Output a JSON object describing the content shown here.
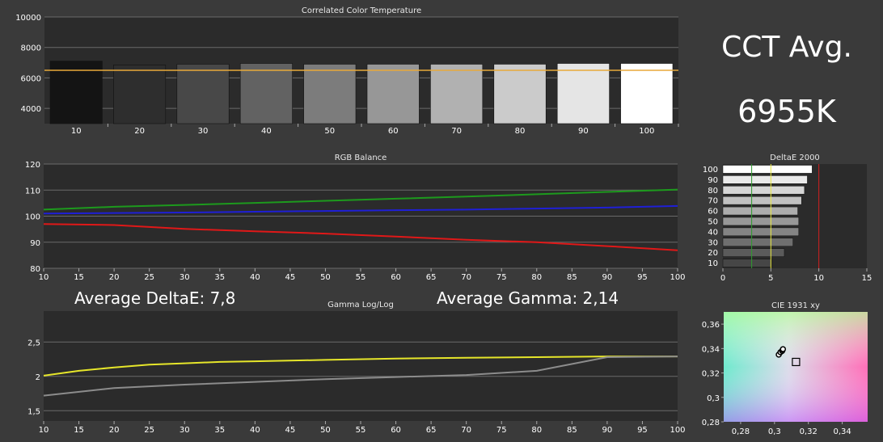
{
  "summary": {
    "cct_avg_label": "CCT Avg.",
    "cct_avg_value": "6955K",
    "avg_deltae_label": "Average DeltaE: 7,8",
    "avg_gamma_label": "Average Gamma: 2,14"
  },
  "chart_data": [
    {
      "type": "bar",
      "title": "Correlated Color Temperature",
      "categories": [
        "10",
        "20",
        "30",
        "40",
        "50",
        "60",
        "70",
        "80",
        "90",
        "100"
      ],
      "values": [
        7100,
        6850,
        6900,
        6950,
        6900,
        6900,
        6900,
        6900,
        6950,
        6950
      ],
      "reference_line": 6500,
      "ylim": [
        3000,
        10000
      ],
      "yticks": [
        4000,
        6000,
        8000,
        10000
      ],
      "ytick_labels": [
        "4000",
        "6000",
        "8000",
        "10000"
      ],
      "colors": {
        "reference": "#e8a93a",
        "background": "#2b2b2b",
        "grid": "#6a6a6a"
      }
    },
    {
      "type": "line",
      "title": "RGB Balance",
      "x": [
        10,
        15,
        20,
        25,
        30,
        35,
        40,
        45,
        50,
        55,
        60,
        65,
        70,
        75,
        80,
        85,
        90,
        95,
        100
      ],
      "xtick_labels": [
        "10",
        "15",
        "20",
        "25",
        "30",
        "35",
        "40",
        "45",
        "50",
        "55",
        "60",
        "65",
        "70",
        "75",
        "80",
        "85",
        "90",
        "95",
        "100"
      ],
      "ylim": [
        80,
        120
      ],
      "yticks": [
        80,
        90,
        100,
        110,
        120
      ],
      "ytick_labels": [
        "80",
        "90",
        "100",
        "110",
        "120"
      ],
      "series": [
        {
          "color": "#1d9a1d",
          "x": [
            10,
            20,
            30,
            40,
            50,
            60,
            70,
            80,
            90,
            100
          ],
          "values": [
            102.5,
            103.6,
            104.3,
            105.1,
            105.9,
            106.7,
            107.5,
            108.4,
            109.3,
            110.2
          ]
        },
        {
          "color": "#1f1fd6",
          "x": [
            10,
            20,
            30,
            40,
            50,
            60,
            70,
            80,
            90,
            100
          ],
          "values": [
            101.0,
            101.2,
            101.4,
            101.7,
            102.0,
            102.3,
            102.5,
            102.9,
            103.3,
            103.9
          ]
        },
        {
          "color": "#e01818",
          "x": [
            10,
            20,
            30,
            40,
            50,
            60,
            70,
            80,
            90,
            100
          ],
          "values": [
            97.0,
            96.6,
            95.1,
            94.2,
            93.3,
            92.2,
            90.9,
            90.0,
            88.5,
            86.9
          ]
        }
      ]
    },
    {
      "type": "bar",
      "orientation": "horizontal",
      "title": "DeltaE 2000",
      "categories": [
        "10",
        "20",
        "30",
        "40",
        "50",
        "60",
        "70",
        "80",
        "90",
        "100"
      ],
      "values": [
        5.1,
        6.4,
        7.3,
        7.9,
        7.9,
        7.8,
        8.2,
        8.5,
        8.8,
        9.3
      ],
      "xlim": [
        0,
        15
      ],
      "xticks": [
        0,
        5,
        10,
        15
      ],
      "xtick_labels": [
        "0",
        "5",
        "10",
        "15"
      ],
      "reference_lines": [
        {
          "value": 3,
          "color": "#2e9a2e"
        },
        {
          "value": 5,
          "color": "#e8e840"
        },
        {
          "value": 10,
          "color": "#d42020"
        }
      ]
    },
    {
      "type": "line",
      "title": "Gamma Log/Log",
      "x": [
        10,
        15,
        20,
        25,
        30,
        35,
        40,
        45,
        50,
        55,
        60,
        65,
        70,
        75,
        80,
        85,
        90,
        95,
        100
      ],
      "xtick_labels": [
        "10",
        "15",
        "20",
        "25",
        "30",
        "35",
        "40",
        "45",
        "50",
        "55",
        "60",
        "65",
        "70",
        "75",
        "80",
        "85",
        "90",
        "95",
        "100"
      ],
      "ylim": [
        1.35,
        2.95
      ],
      "yticks": [
        1.5,
        2.0,
        2.5
      ],
      "ytick_labels": [
        "1,5",
        "2",
        "2,5"
      ],
      "series": [
        {
          "color": "#e6e62a",
          "x": [
            10,
            15,
            20,
            25,
            30,
            35,
            40,
            50,
            60,
            70,
            80,
            90,
            100
          ],
          "values": [
            2.01,
            2.08,
            2.13,
            2.17,
            2.19,
            2.21,
            2.22,
            2.24,
            2.26,
            2.27,
            2.28,
            2.29,
            2.29
          ]
        },
        {
          "color": "#8c8c8c",
          "x": [
            10,
            20,
            30,
            40,
            50,
            60,
            70,
            80,
            90,
            100
          ],
          "values": [
            1.72,
            1.83,
            1.88,
            1.92,
            1.96,
            1.99,
            2.02,
            2.08,
            2.28,
            2.29
          ]
        }
      ]
    },
    {
      "type": "scatter",
      "title": "CIE 1931 xy",
      "xlim": [
        0.27,
        0.355
      ],
      "ylim": [
        0.28,
        0.37
      ],
      "xticks": [
        0.28,
        0.3,
        0.32,
        0.34
      ],
      "xtick_labels": [
        "0,28",
        "0,3",
        "0,32",
        "0,34"
      ],
      "yticks": [
        0.28,
        0.3,
        0.32,
        0.34,
        0.36
      ],
      "ytick_labels": [
        "0,28",
        "0,3",
        "0,32",
        "0,34",
        "0,36"
      ],
      "points": [
        {
          "x": 0.3025,
          "y": 0.335
        },
        {
          "x": 0.3035,
          "y": 0.337
        },
        {
          "x": 0.3045,
          "y": 0.338
        },
        {
          "x": 0.3048,
          "y": 0.339
        },
        {
          "x": 0.305,
          "y": 0.3395
        }
      ],
      "target": {
        "x": 0.3127,
        "y": 0.329
      }
    }
  ]
}
